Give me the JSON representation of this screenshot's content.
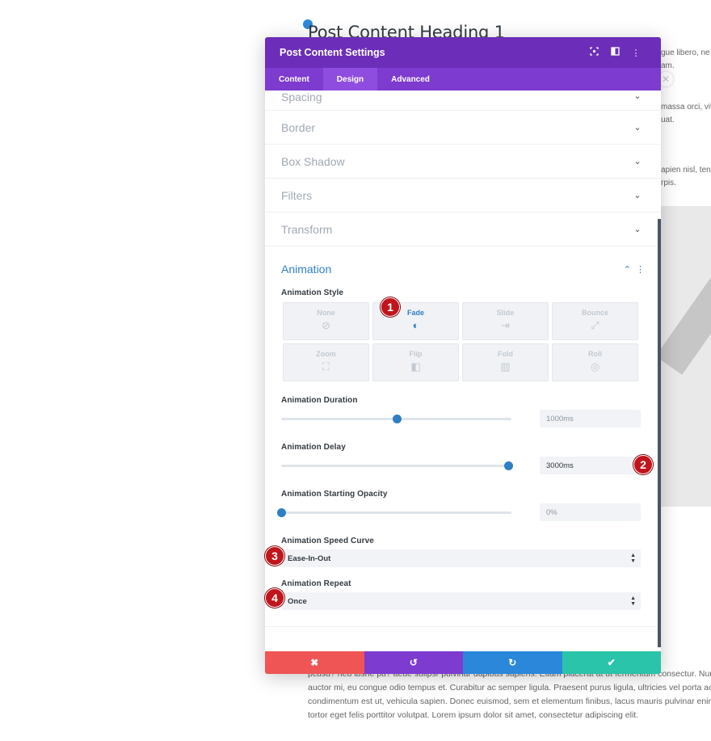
{
  "background": {
    "heading": "Post Content Heading 1",
    "right_snippets": [
      "gue libero, ne",
      "am.",
      "massa orci, vit",
      "uat.",
      "apien nisl, ten",
      "rpis."
    ],
    "bottom_lines": [
      "pcusu? neu ibsrle pu? aeue sullpsr pulvinar dapibus sapiens. Etiam placerat at ut fermentum consectur. Nunc in sce",
      "auctor mi, eu congue odio tempus et. Curabitur ac semper ligula. Praesent purus ligula, ultricies vel porta ac, ele",
      "condimentum est ut, vehicula sapien. Donec euismod, sem et elementum finibus, lacus mauris pulvinar enim, n",
      "tortor eget felis porttitor volutpat. Lorem ipsum dolor sit amet, consectetur adipiscing elit."
    ]
  },
  "modal": {
    "title": "Post Content Settings",
    "header_icons": [
      "focus-icon",
      "split-view-icon",
      "more-icon"
    ],
    "tabs": [
      {
        "label": "Content",
        "active": false
      },
      {
        "label": "Design",
        "active": true
      },
      {
        "label": "Advanced",
        "active": false
      }
    ],
    "sections": [
      "Spacing",
      "Border",
      "Box Shadow",
      "Filters",
      "Transform"
    ],
    "animation": {
      "title": "Animation",
      "style_label": "Animation Style",
      "styles": [
        {
          "name": "None",
          "icon": "⊘",
          "active": false
        },
        {
          "name": "Fade",
          "icon": "◐",
          "active": true
        },
        {
          "name": "Slide",
          "icon": "⇥",
          "active": false
        },
        {
          "name": "Bounce",
          "icon": "⤢",
          "active": false
        },
        {
          "name": "Zoom",
          "icon": "⛶",
          "active": false
        },
        {
          "name": "Flip",
          "icon": "◧",
          "active": false
        },
        {
          "name": "Fold",
          "icon": "▥",
          "active": false
        },
        {
          "name": "Roll",
          "icon": "◎",
          "active": false
        }
      ],
      "duration": {
        "label": "Animation Duration",
        "value": "1000ms",
        "fraction": 0.5
      },
      "delay": {
        "label": "Animation Delay",
        "value": "3000ms",
        "fraction": 0.985
      },
      "opacity": {
        "label": "Animation Starting Opacity",
        "value": "0%",
        "fraction": 0.0
      },
      "speed_curve": {
        "label": "Animation Speed Curve",
        "value": "Ease-In-Out"
      },
      "repeat": {
        "label": "Animation Repeat",
        "value": "Once"
      }
    },
    "footer": {
      "cancel_icon": "✖",
      "undo_icon": "↺",
      "redo_icon": "↻",
      "save_icon": "✔"
    }
  },
  "badges": [
    "1",
    "2",
    "3",
    "4"
  ],
  "colors": {
    "header": "#6c2eb9",
    "tabs": "#7d3bcf",
    "accent": "#2e7fc5",
    "cancel": "#ef5555",
    "undo": "#7e3bd0",
    "redo": "#2b87da",
    "save": "#29c4a9",
    "badge": "#c2141b"
  }
}
